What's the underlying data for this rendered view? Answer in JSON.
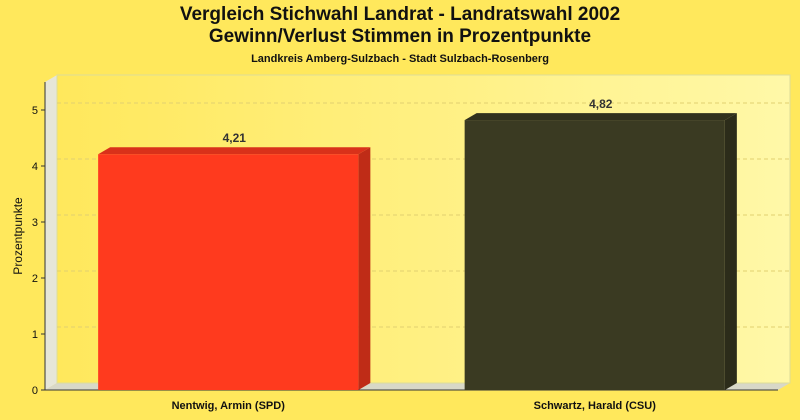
{
  "titles": {
    "line1": "Vergleich Stichwahl Landrat - Landratswahl 2002",
    "line2": "Gewinn/Verlust Stimmen in Prozentpunkte",
    "line3": "Landkreis Amberg-Sulzbach - Stadt Sulzbach-Rosenberg"
  },
  "chart_data": {
    "type": "bar",
    "categories": [
      "Nentwig, Armin (SPD)",
      "Schwartz, Harald (CSU)"
    ],
    "values": [
      4.21,
      4.82
    ],
    "value_labels": [
      "4,21",
      "4,82"
    ],
    "colors": [
      "#ff3a1e",
      "#3a3a22"
    ],
    "ylabel": "Prozentpunkte",
    "ylim": [
      0,
      5.5
    ],
    "yticks": [
      0,
      1,
      2,
      3,
      4,
      5
    ],
    "grid": true
  }
}
